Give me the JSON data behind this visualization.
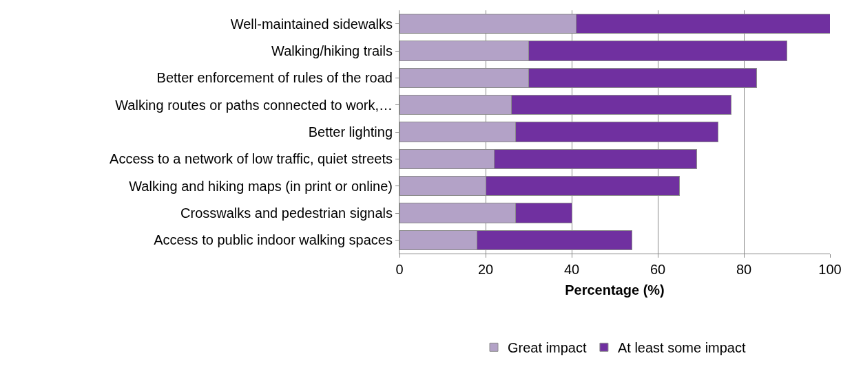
{
  "chart_data": {
    "type": "bar",
    "orientation": "horizontal",
    "stacked": true,
    "xlabel": "Percentage (%)",
    "categories": [
      "Well-maintained sidewalks",
      "Walking/hiking trails",
      "Better enforcement of rules of the road",
      "Walking routes or paths connected to work,…",
      "Better lighting",
      "Access to a network of low traffic, quiet streets",
      "Walking and hiking maps (in print or online)",
      "Crosswalks and pedestrian signals",
      "Access to public indoor walking spaces"
    ],
    "series": [
      {
        "name": "Great impact",
        "color": "#b3a2c7",
        "values": [
          41,
          30,
          30,
          26,
          27,
          22,
          20,
          27,
          18
        ]
      },
      {
        "name": "At least some impact",
        "color": "#7030a0",
        "values": [
          59,
          60,
          53,
          51,
          47,
          47,
          45,
          13,
          36
        ]
      }
    ],
    "xlim": [
      0,
      100
    ],
    "xticks": [
      0,
      20,
      40,
      60,
      80,
      100
    ],
    "grid": "x",
    "legend": "bottom"
  }
}
